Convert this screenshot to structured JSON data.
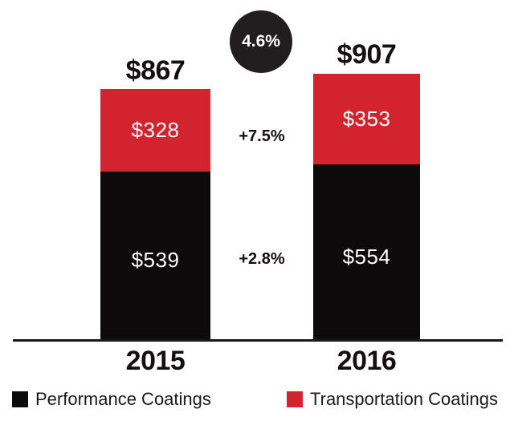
{
  "chart_data": {
    "type": "bar",
    "stacked": true,
    "categories": [
      "2015",
      "2016"
    ],
    "series": [
      {
        "name": "Performance Coatings",
        "color": "#0d0a0b",
        "values": [
          539,
          554
        ],
        "value_labels": [
          "$539",
          "$554"
        ],
        "growth_label": "+2.8%"
      },
      {
        "name": "Transportation Coatings",
        "color": "#d2232e",
        "values": [
          328,
          353
        ],
        "value_labels": [
          "$328",
          "$353"
        ],
        "growth_label": "+7.5%"
      }
    ],
    "totals": {
      "values": [
        867,
        907
      ],
      "labels": [
        "$867",
        "$907"
      ]
    },
    "total_growth_label": "4.6%",
    "value_prefix": "$",
    "gridlines": false,
    "legend_position": "bottom",
    "baseline_color": "#1a1617"
  },
  "legend": {
    "items": [
      {
        "label": "Performance Coatings",
        "color": "#0d0a0b"
      },
      {
        "label": "Transportation Coatings",
        "color": "#d2232e"
      }
    ]
  },
  "colors": {
    "background": "#ffffff",
    "red": "#d2232e",
    "black": "#0d0a0b",
    "circle": "#221e1f",
    "text": "#141011"
  }
}
